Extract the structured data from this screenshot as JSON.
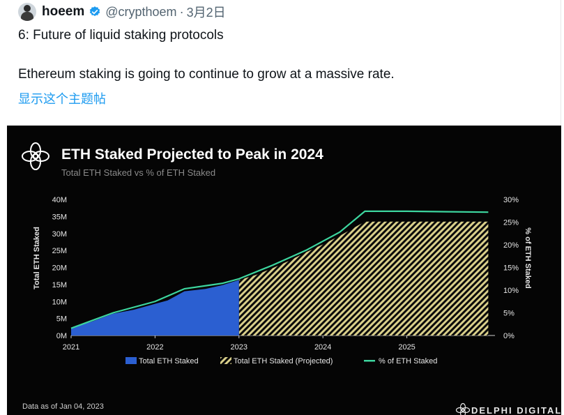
{
  "tweet": {
    "author_name": "hoeem",
    "handle": "@crypthoem",
    "separator": "·",
    "date": "3月2日",
    "line1": "6: Future of liquid staking protocols",
    "line2": "Ethereum staking is going to continue to grow at a massive rate.",
    "show_thread": "显示这个主题帖"
  },
  "icons": {
    "verified": "verified-badge-icon",
    "brand_logo": "delphi-flower-icon",
    "avatar": "user-avatar"
  },
  "colors": {
    "link": "#1d9bf0",
    "actual": "#2b5fd1",
    "projected": "#d9cf8a",
    "pct_line": "#3dd69f"
  },
  "chart_data": {
    "type": "area",
    "title": "ETH Staked Projected to Peak in 2024",
    "subtitle": "Total ETH Staked vs % of ETH Staked",
    "ylabel": "Total ETH Staked",
    "y2label": "% of ETH Staked",
    "x_ticks": [
      "2021",
      "2022",
      "2023",
      "2024",
      "2025"
    ],
    "y_ticks": [
      "0M",
      "5M",
      "10M",
      "15M",
      "20M",
      "25M",
      "30M",
      "35M",
      "40M"
    ],
    "y2_ticks": [
      "0%",
      "5%",
      "10%",
      "15%",
      "20%",
      "25%",
      "30%"
    ],
    "ylim": [
      0,
      40
    ],
    "y2lim": [
      0,
      30
    ],
    "legend": [
      "Total ETH Staked",
      "Total ETH Staked (Projected)",
      "% of ETH Staked"
    ],
    "legend_position": "bottom",
    "series": [
      {
        "name": "Total ETH Staked",
        "x": [
          2021.0,
          2021.25,
          2021.5,
          2021.75,
          2022.0,
          2022.15,
          2022.35,
          2022.6,
          2022.8,
          2023.0
        ],
        "values": [
          2.2,
          4.1,
          6.4,
          7.6,
          9.3,
          10.3,
          13.0,
          13.7,
          14.8,
          16.3
        ]
      },
      {
        "name": "Total ETH Staked (Projected)",
        "x": [
          2023.0,
          2023.2,
          2023.4,
          2023.6,
          2023.8,
          2024.0,
          2024.2,
          2024.5,
          2025.0,
          2025.5,
          2025.97
        ],
        "values": [
          16.3,
          17.8,
          19.8,
          22.0,
          24.5,
          26.8,
          29.3,
          33.5,
          33.5,
          33.5,
          33.5
        ]
      },
      {
        "name": "% of ETH Staked",
        "x": [
          2021.0,
          2021.5,
          2022.0,
          2022.35,
          2022.8,
          2023.0,
          2023.4,
          2023.8,
          2024.2,
          2024.5,
          2025.0,
          2025.97
        ],
        "values": [
          1.6,
          5.0,
          7.5,
          10.3,
          11.5,
          12.5,
          15.5,
          18.8,
          22.8,
          27.4,
          27.4,
          27.2
        ]
      }
    ]
  },
  "footer": {
    "data_note": "Data as of Jan 04, 2023",
    "brand": "DELPHI DIGITAL"
  }
}
